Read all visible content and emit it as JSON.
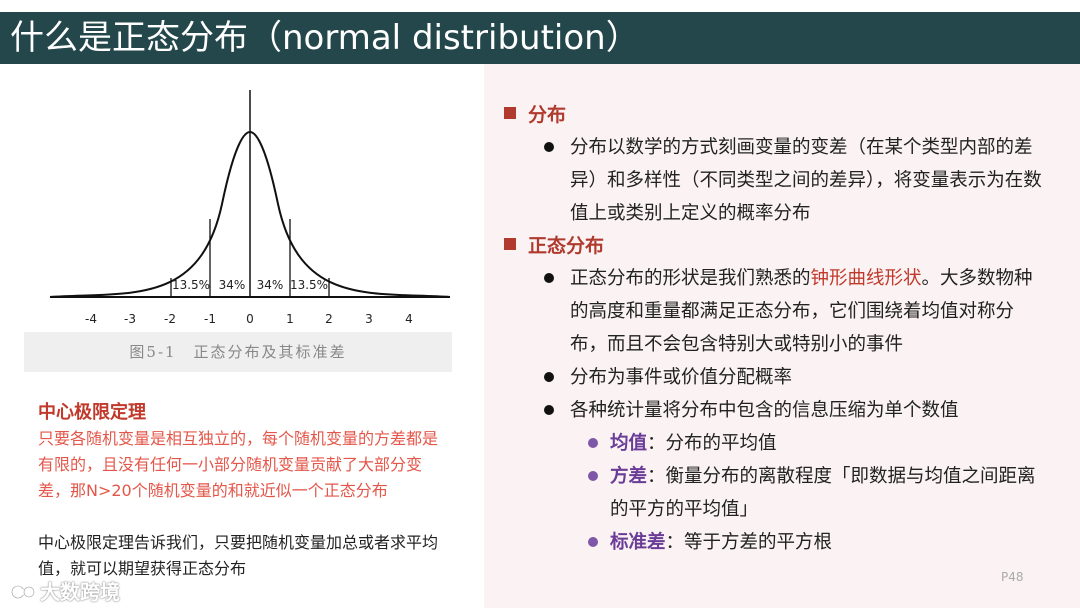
{
  "title": "什么是正态分布（normal distribution）",
  "figure": {
    "labels": [
      "13.5%",
      "34%",
      "34%",
      "13.5%"
    ],
    "ticks": [
      "-4",
      "-3",
      "-2",
      "-1",
      "0",
      "1",
      "2",
      "3",
      "4"
    ],
    "caption": "图5-1　正态分布及其标准差"
  },
  "clt": {
    "title": "中心极限定理",
    "red_text": "只要各随机变量是相互独立的，每个随机变量的方差都是有限的，且没有任何一小部分随机变量贡献了大部分变差，那N>20个随机变量的和就近似一个正态分布",
    "black_text": "中心极限定理告诉我们，只要把随机变量加总或者求平均值，就可以期望获得正态分布"
  },
  "sections": {
    "dist": {
      "heading": "分布",
      "bullet1": "分布以数学的方式刻画变量的变差（在某个类型内部的差异）和多样性（不同类型之间的差异），将变量表示为在数值上或类别上定义的概率分布"
    },
    "normal": {
      "heading": "正态分布",
      "b1_pre": "正态分布的形状是我们熟悉的",
      "b1_hl": "钟形曲线形状",
      "b1_post": "。大多数物种的高度和重量都满足正态分布，它们围绕着均值对称分布，而且不会包含特别大或特别小的事件",
      "b2": "分布为事件或价值分配概率",
      "b3": "各种统计量将分布中包含的信息压缩为单个数值",
      "sub": [
        {
          "term": "均值",
          "desc": "：分布的平均值"
        },
        {
          "term": "方差",
          "desc": "：衡量分布的离散程度「即数据与均值之间距离的平方的平均值」"
        },
        {
          "term": "标准差",
          "desc": "：等于方差的平方根"
        }
      ]
    }
  },
  "page_number": "P48",
  "watermark": "大数跨境"
}
